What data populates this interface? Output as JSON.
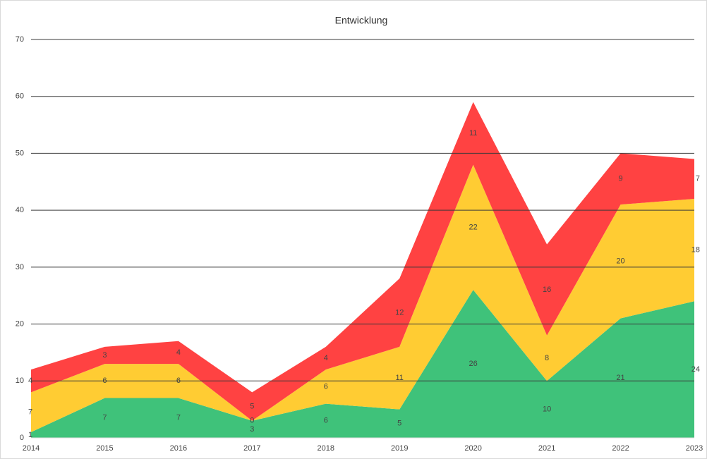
{
  "chart_data": {
    "type": "stacked_area",
    "title": "Entwicklung",
    "categories": [
      "2014",
      "2015",
      "2016",
      "2017",
      "2018",
      "2019",
      "2020",
      "2021",
      "2022",
      "2023"
    ],
    "series": [
      {
        "color": "#3fc27a",
        "values": [
          1,
          7,
          7,
          3,
          6,
          5,
          26,
          10,
          21,
          24
        ]
      },
      {
        "color": "#ffcc33",
        "values": [
          7,
          6,
          6,
          0,
          6,
          11,
          22,
          8,
          20,
          18
        ]
      },
      {
        "color": "#ff4242",
        "values": [
          4,
          3,
          4,
          5,
          4,
          12,
          11,
          16,
          9,
          7
        ]
      }
    ],
    "ylim": [
      0,
      70
    ],
    "yticks": [
      0,
      10,
      20,
      30,
      40,
      50,
      60,
      70
    ],
    "grid": true
  }
}
